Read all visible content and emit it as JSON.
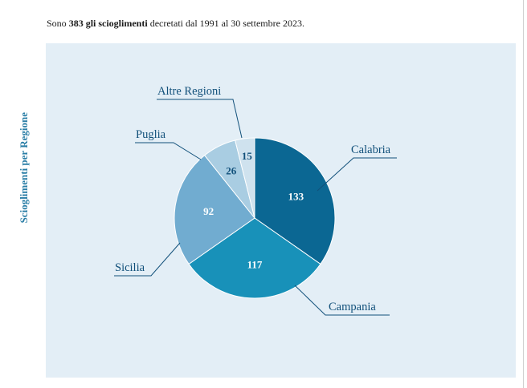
{
  "intro": {
    "prefix": "Sono ",
    "bold": "383 gli scioglimenti",
    "suffix": " decretati dal 1991 al 30 settembre 2023."
  },
  "chart_data": {
    "type": "pie",
    "title": "Scioglimenti per Regione",
    "total": 383,
    "slices": [
      {
        "label": "Calabria",
        "value": 133,
        "color": "#0b6793",
        "text_color": "#ffffff"
      },
      {
        "label": "Campania",
        "value": 117,
        "color": "#1891b9",
        "text_color": "#ffffff"
      },
      {
        "label": "Sicilia",
        "value": 92,
        "color": "#71acd0",
        "text_color": "#ffffff"
      },
      {
        "label": "Puglia",
        "value": 26,
        "color": "#a9cde2",
        "text_color": "#11507a"
      },
      {
        "label": "Altre Regioni",
        "value": 15,
        "color": "#cfe2ee",
        "text_color": "#11507a"
      }
    ],
    "start_angle": "12 o'clock",
    "direction": "clockwise",
    "legend": "callout labels"
  }
}
